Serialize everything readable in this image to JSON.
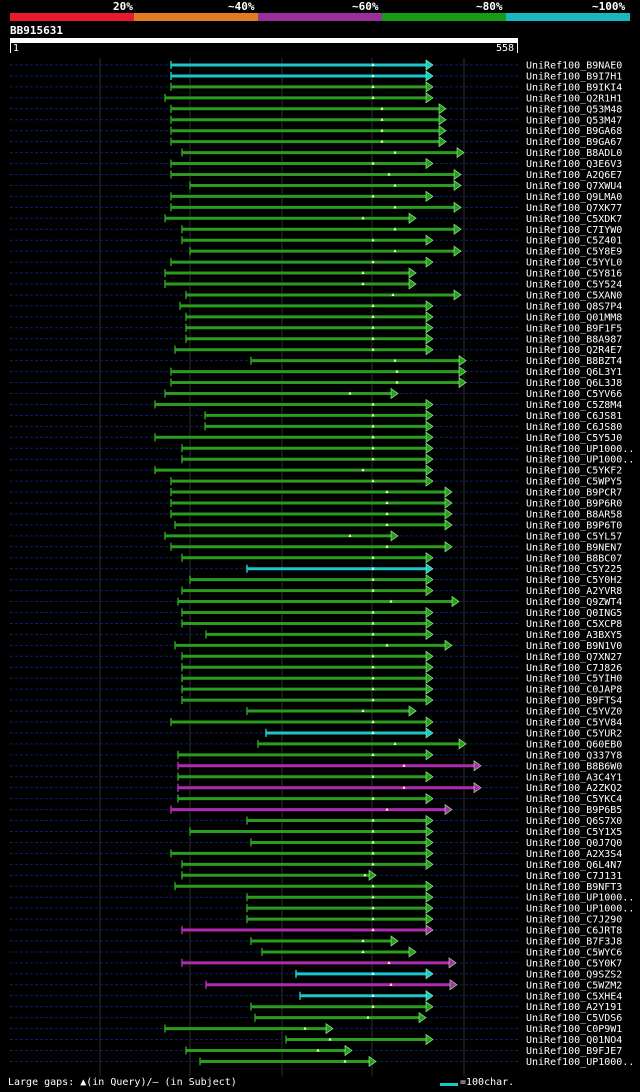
{
  "scale": {
    "labels": [
      "20%",
      "~40%",
      "~60%",
      "~80%",
      "~100%"
    ],
    "colors": [
      "#e8192c",
      "#e07b22",
      "#9a2e9a",
      "#149c14",
      "#18b8c0"
    ]
  },
  "query": {
    "id": "BB915631",
    "start": "1",
    "end": "558"
  },
  "footer": {
    "gaps_text": "Large gaps: ▲(in Query)/– (in Subject)",
    "legend_text": "=100char."
  },
  "palette": {
    "cyan": "#18c8cc",
    "green": "#2a9c20",
    "magenta": "#b02ab0"
  },
  "hits": [
    {
      "name": "UniRef100_B9NAE0",
      "s": 171,
      "e": 432,
      "c": "cyan",
      "q": 373
    },
    {
      "name": "UniRef100_B9I7H1",
      "s": 171,
      "e": 432,
      "c": "cyan",
      "q": 373
    },
    {
      "name": "UniRef100_B9IKI4",
      "s": 171,
      "e": 432,
      "c": "green",
      "q": 373
    },
    {
      "name": "UniRef100_Q2R1H1",
      "s": 165,
      "e": 432,
      "c": "green",
      "q": 373
    },
    {
      "name": "UniRef100_Q53M48",
      "s": 171,
      "e": 445,
      "c": "green",
      "q": 382
    },
    {
      "name": "UniRef100_Q53M47",
      "s": 171,
      "e": 445,
      "c": "green",
      "q": 382
    },
    {
      "name": "UniRef100_B9GA68",
      "s": 171,
      "e": 445,
      "c": "green",
      "q": 382
    },
    {
      "name": "UniRef100_B9GA67",
      "s": 171,
      "e": 445,
      "c": "green",
      "q": 382
    },
    {
      "name": "UniRef100_B8ADL0",
      "s": 182,
      "e": 463,
      "c": "green",
      "q": 395
    },
    {
      "name": "UniRef100_Q3E6V3",
      "s": 171,
      "e": 432,
      "c": "green",
      "q": 373
    },
    {
      "name": "UniRef100_A2Q6E7",
      "s": 171,
      "e": 460,
      "c": "green",
      "q": 389
    },
    {
      "name": "UniRef100_Q7XWU4",
      "s": 190,
      "e": 460,
      "c": "green",
      "q": 395
    },
    {
      "name": "UniRef100_Q9LMA0",
      "s": 171,
      "e": 432,
      "c": "green",
      "q": 373
    },
    {
      "name": "UniRef100_Q7XK77",
      "s": 171,
      "e": 460,
      "c": "green",
      "q": 395
    },
    {
      "name": "UniRef100_C5XDK7",
      "s": 165,
      "e": 415,
      "c": "green",
      "q": 363
    },
    {
      "name": "UniRef100_C7IYW0",
      "s": 182,
      "e": 460,
      "c": "green",
      "q": 395
    },
    {
      "name": "UniRef100_C5Z401",
      "s": 182,
      "e": 432,
      "c": "green",
      "q": 373
    },
    {
      "name": "UniRef100_C5Y8E9",
      "s": 190,
      "e": 460,
      "c": "green",
      "q": 395
    },
    {
      "name": "UniRef100_C5YYL0",
      "s": 171,
      "e": 432,
      "c": "green",
      "q": 373
    },
    {
      "name": "UniRef100_C5Y816",
      "s": 165,
      "e": 415,
      "c": "green",
      "q": 363
    },
    {
      "name": "UniRef100_C5Y524",
      "s": 165,
      "e": 415,
      "c": "green",
      "q": 363
    },
    {
      "name": "UniRef100_C5XAN0",
      "s": 186,
      "e": 460,
      "c": "green",
      "q": 393
    },
    {
      "name": "UniRef100_Q8S7P4",
      "s": 180,
      "e": 432,
      "c": "green",
      "q": 373
    },
    {
      "name": "UniRef100_Q01MM8",
      "s": 186,
      "e": 432,
      "c": "green",
      "q": 373
    },
    {
      "name": "UniRef100_B9F1F5",
      "s": 186,
      "e": 432,
      "c": "green",
      "q": 373
    },
    {
      "name": "UniRef100_B8A987",
      "s": 186,
      "e": 432,
      "c": "green",
      "q": 373
    },
    {
      "name": "UniRef100_Q2R4E7",
      "s": 175,
      "e": 432,
      "c": "green",
      "q": 373
    },
    {
      "name": "UniRef100_B8BZT4",
      "s": 251,
      "e": 465,
      "c": "green",
      "q": 395
    },
    {
      "name": "UniRef100_Q6L3Y1",
      "s": 171,
      "e": 465,
      "c": "green",
      "q": 397
    },
    {
      "name": "UniRef100_Q6L3J8",
      "s": 171,
      "e": 465,
      "c": "green",
      "q": 397
    },
    {
      "name": "UniRef100_C5YV66",
      "s": 165,
      "e": 397,
      "c": "green",
      "q": 350
    },
    {
      "name": "UniRef100_C5Z8M4",
      "s": 155,
      "e": 432,
      "c": "green",
      "q": 373
    },
    {
      "name": "UniRef100_C6JS81",
      "s": 205,
      "e": 432,
      "c": "green",
      "q": 373
    },
    {
      "name": "UniRef100_C6JS80",
      "s": 205,
      "e": 432,
      "c": "green",
      "q": 373
    },
    {
      "name": "UniRef100_C5Y5J0",
      "s": 155,
      "e": 432,
      "c": "green",
      "q": 373
    },
    {
      "name": "UniRef100_UP1000..",
      "s": 182,
      "e": 432,
      "c": "green",
      "q": 373
    },
    {
      "name": "UniRef100_UP1000..",
      "s": 182,
      "e": 432,
      "c": "green",
      "q": 373
    },
    {
      "name": "UniRef100_C5YKF2",
      "s": 155,
      "e": 432,
      "c": "green",
      "q": 363
    },
    {
      "name": "UniRef100_C5WPY5",
      "s": 171,
      "e": 432,
      "c": "green",
      "q": 373
    },
    {
      "name": "UniRef100_B9PCR7",
      "s": 171,
      "e": 451,
      "c": "green",
      "q": 387
    },
    {
      "name": "UniRef100_B9P6R0",
      "s": 171,
      "e": 451,
      "c": "green",
      "q": 387
    },
    {
      "name": "UniRef100_B8AR58",
      "s": 171,
      "e": 451,
      "c": "green",
      "q": 387
    },
    {
      "name": "UniRef100_B9P6T0",
      "s": 175,
      "e": 451,
      "c": "green",
      "q": 387
    },
    {
      "name": "UniRef100_C5YL57",
      "s": 165,
      "e": 397,
      "c": "green",
      "q": 350
    },
    {
      "name": "UniRef100_B9NEN7",
      "s": 171,
      "e": 451,
      "c": "green",
      "q": 387
    },
    {
      "name": "UniRef100_B8BC07",
      "s": 182,
      "e": 432,
      "c": "green",
      "q": 373
    },
    {
      "name": "UniRef100_C5Y225",
      "s": 247,
      "e": 432,
      "c": "cyan",
      "q": 373
    },
    {
      "name": "UniRef100_C5Y0H2",
      "s": 190,
      "e": 432,
      "c": "green",
      "q": 373
    },
    {
      "name": "UniRef100_A2YVR8",
      "s": 182,
      "e": 432,
      "c": "green",
      "q": 373
    },
    {
      "name": "UniRef100_Q9ZWT4",
      "s": 178,
      "e": 458,
      "c": "green",
      "q": 391
    },
    {
      "name": "UniRef100_Q0ING5",
      "s": 182,
      "e": 432,
      "c": "green",
      "q": 373
    },
    {
      "name": "UniRef100_C5XCP8",
      "s": 182,
      "e": 432,
      "c": "green",
      "q": 373
    },
    {
      "name": "UniRef100_A3BXY5",
      "s": 206,
      "e": 432,
      "c": "green",
      "q": 373
    },
    {
      "name": "UniRef100_B9N1V0",
      "s": 175,
      "e": 451,
      "c": "green",
      "q": 387
    },
    {
      "name": "UniRef100_Q7XN27",
      "s": 182,
      "e": 432,
      "c": "green",
      "q": 373
    },
    {
      "name": "UniRef100_C7J826",
      "s": 182,
      "e": 432,
      "c": "green",
      "q": 373
    },
    {
      "name": "UniRef100_C5YIH0",
      "s": 182,
      "e": 432,
      "c": "green",
      "q": 373
    },
    {
      "name": "UniRef100_C0JAP8",
      "s": 182,
      "e": 432,
      "c": "green",
      "q": 373
    },
    {
      "name": "UniRef100_B9FTS4",
      "s": 182,
      "e": 432,
      "c": "green",
      "q": 373
    },
    {
      "name": "UniRef100_C5YVZ0",
      "s": 247,
      "e": 415,
      "c": "green",
      "q": 363
    },
    {
      "name": "UniRef100_C5YV84",
      "s": 171,
      "e": 432,
      "c": "green",
      "q": 373
    },
    {
      "name": "UniRef100_C5YUR2",
      "s": 266,
      "e": 432,
      "c": "cyan",
      "q": 373
    },
    {
      "name": "UniRef100_Q60EB0",
      "s": 258,
      "e": 465,
      "c": "green",
      "q": 395
    },
    {
      "name": "UniRef100_Q337Y8",
      "s": 178,
      "e": 432,
      "c": "green",
      "q": 373
    },
    {
      "name": "UniRef100_B8B6W0",
      "s": 178,
      "e": 480,
      "c": "magenta",
      "q": 404
    },
    {
      "name": "UniRef100_A3C4Y1",
      "s": 178,
      "e": 432,
      "c": "green",
      "q": 373
    },
    {
      "name": "UniRef100_A2ZKQ2",
      "s": 178,
      "e": 480,
      "c": "magenta",
      "q": 404
    },
    {
      "name": "UniRef100_C5YKC4",
      "s": 178,
      "e": 432,
      "c": "green",
      "q": 373
    },
    {
      "name": "UniRef100_B9P6B5",
      "s": 171,
      "e": 451,
      "c": "magenta",
      "q": 387
    },
    {
      "name": "UniRef100_Q6S7X0",
      "s": 247,
      "e": 432,
      "c": "green",
      "q": 373
    },
    {
      "name": "UniRef100_C5Y1X5",
      "s": 190,
      "e": 432,
      "c": "green",
      "q": 373
    },
    {
      "name": "UniRef100_Q0J7Q0",
      "s": 251,
      "e": 432,
      "c": "green",
      "q": 373
    },
    {
      "name": "UniRef100_A2X3S4",
      "s": 171,
      "e": 432,
      "c": "green",
      "q": 373
    },
    {
      "name": "UniRef100_Q6L4N7",
      "s": 182,
      "e": 432,
      "c": "green",
      "q": 373
    },
    {
      "name": "UniRef100_C7J131",
      "s": 182,
      "e": 375,
      "c": "green",
      "q": 365
    },
    {
      "name": "UniRef100_B9NFT3",
      "s": 175,
      "e": 432,
      "c": "green",
      "q": 373
    },
    {
      "name": "UniRef100_UP1000..",
      "s": 247,
      "e": 432,
      "c": "green",
      "q": 373
    },
    {
      "name": "UniRef100_UP1000..",
      "s": 247,
      "e": 432,
      "c": "green",
      "q": 373
    },
    {
      "name": "UniRef100_C7J290",
      "s": 247,
      "e": 432,
      "c": "green",
      "q": 373
    },
    {
      "name": "UniRef100_C6JRT8",
      "s": 182,
      "e": 432,
      "c": "magenta",
      "q": 373
    },
    {
      "name": "UniRef100_B7F3J8",
      "s": 251,
      "e": 397,
      "c": "green",
      "q": 363
    },
    {
      "name": "UniRef100_C5WYC6",
      "s": 262,
      "e": 415,
      "c": "green",
      "q": 363
    },
    {
      "name": "UniRef100_C5Y0K7",
      "s": 182,
      "e": 455,
      "c": "magenta",
      "q": 389
    },
    {
      "name": "UniRef100_Q9SZS2",
      "s": 296,
      "e": 432,
      "c": "cyan",
      "q": 373
    },
    {
      "name": "UniRef100_C5WZM2",
      "s": 206,
      "e": 456,
      "c": "magenta",
      "q": 391
    },
    {
      "name": "UniRef100_C5XHE4",
      "s": 300,
      "e": 432,
      "c": "cyan",
      "q": 373
    },
    {
      "name": "UniRef100_A2Y191",
      "s": 251,
      "e": 432,
      "c": "green",
      "q": 373
    },
    {
      "name": "UniRef100_C5VDS6",
      "s": 255,
      "e": 425,
      "c": "green",
      "q": 368
    },
    {
      "name": "UniRef100_C0P9W1",
      "s": 165,
      "e": 332,
      "c": "green",
      "q": 305
    },
    {
      "name": "UniRef100_Q01NO4",
      "s": 286,
      "e": 432,
      "c": "green",
      "q": 330
    },
    {
      "name": "UniRef100_B9FJE7",
      "s": 186,
      "e": 351,
      "c": "green",
      "q": 318
    },
    {
      "name": "UniRef100_UP1000..",
      "s": 200,
      "e": 375,
      "c": "green",
      "q": 345
    }
  ]
}
